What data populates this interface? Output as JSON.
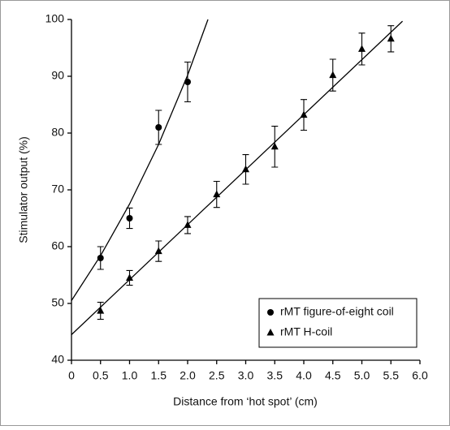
{
  "chart_data": {
    "type": "scatter",
    "xlabel": "Distance from ‘hot spot’ (cm)",
    "ylabel": "Stimulator output (%)",
    "xlim": [
      0,
      6
    ],
    "ylim": [
      40,
      100
    ],
    "xticks": [
      0,
      0.5,
      {
        "value": 1,
        "label": "1.0"
      },
      1.5,
      {
        "value": 2,
        "label": "2.0"
      },
      2.5,
      {
        "value": 3,
        "label": "3.0"
      },
      3.5,
      {
        "value": 4,
        "label": "4.0"
      },
      4.5,
      {
        "value": 5,
        "label": "5.0"
      },
      5.5,
      {
        "value": 6,
        "label": "6.0"
      }
    ],
    "yticks": [
      40,
      50,
      60,
      70,
      80,
      90,
      100
    ],
    "legend": "lower right",
    "series": [
      {
        "name": "rMT figure-of-eight coil",
        "color": "#000000",
        "marker": "circle",
        "x": [
          0.5,
          1.0,
          1.5,
          2.0
        ],
        "values": [
          58,
          65,
          81,
          89
        ],
        "errors": [
          2,
          1.8,
          3,
          3.5
        ],
        "fit": {
          "x": [
            0,
            0.5,
            1,
            1.5,
            2,
            2.35
          ],
          "values": [
            50.5,
            58.4,
            67.5,
            78.0,
            90.2,
            100
          ]
        }
      },
      {
        "name": "rMT H-coil",
        "color": "#000000",
        "marker": "triangle",
        "x": [
          0.5,
          1.0,
          1.5,
          2.0,
          2.5,
          3.0,
          3.5,
          4.0,
          4.5,
          5.0,
          5.5
        ],
        "values": [
          48.7,
          54.5,
          59.2,
          63.8,
          69.2,
          73.6,
          77.6,
          83.2,
          90.2,
          94.8,
          96.6
        ],
        "errors": [
          1.5,
          1.3,
          1.8,
          1.5,
          2.3,
          2.6,
          3.6,
          2.7,
          2.8,
          2.8,
          2.3
        ],
        "fit": {
          "x": [
            0,
            5.7
          ],
          "values": [
            44.5,
            99.7
          ]
        }
      }
    ]
  }
}
